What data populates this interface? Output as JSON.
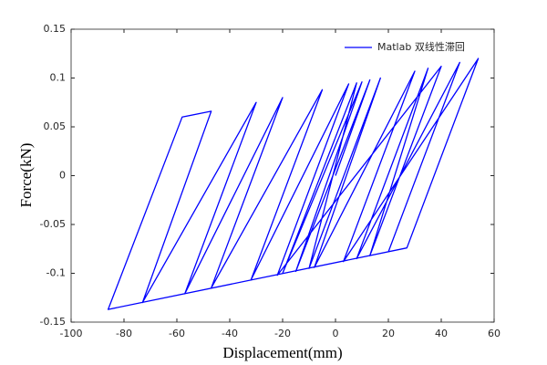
{
  "chart_data": {
    "type": "line",
    "xlabel": "Displacement(mm)",
    "ylabel": "Force(kN)",
    "xlim": [
      -100,
      60
    ],
    "xticks": [
      -100,
      -80,
      -60,
      -40,
      -20,
      0,
      20,
      40,
      60
    ],
    "ylim": [
      -0.15,
      0.15
    ],
    "yticks": [
      -0.15,
      -0.1,
      -0.05,
      0,
      0.05,
      0.1,
      0.15
    ],
    "legend": "northeast",
    "grid": false,
    "x": [
      0,
      13,
      -15,
      10,
      -20,
      8,
      -10,
      17,
      -8,
      30,
      3,
      54,
      27,
      -86,
      -58,
      -47,
      -73,
      -30,
      -57,
      -20,
      -47,
      -5,
      -32,
      5,
      -22,
      40,
      13,
      35,
      8,
      47,
      20
    ],
    "series": [
      {
        "name": "Matlab 双线性滞回",
        "color": "#0000ff",
        "values": [
          0,
          0.098,
          -0.098,
          0.096,
          -0.1,
          0.095,
          -0.095,
          0.1,
          -0.094,
          0.107,
          -0.088,
          0.12,
          -0.074,
          -0.137,
          0.06,
          0.066,
          -0.13,
          0.075,
          -0.121,
          0.08,
          -0.115,
          0.088,
          -0.107,
          0.094,
          -0.102,
          0.112,
          -0.082,
          0.11,
          -0.085,
          0.116,
          -0.078
        ]
      }
    ]
  }
}
